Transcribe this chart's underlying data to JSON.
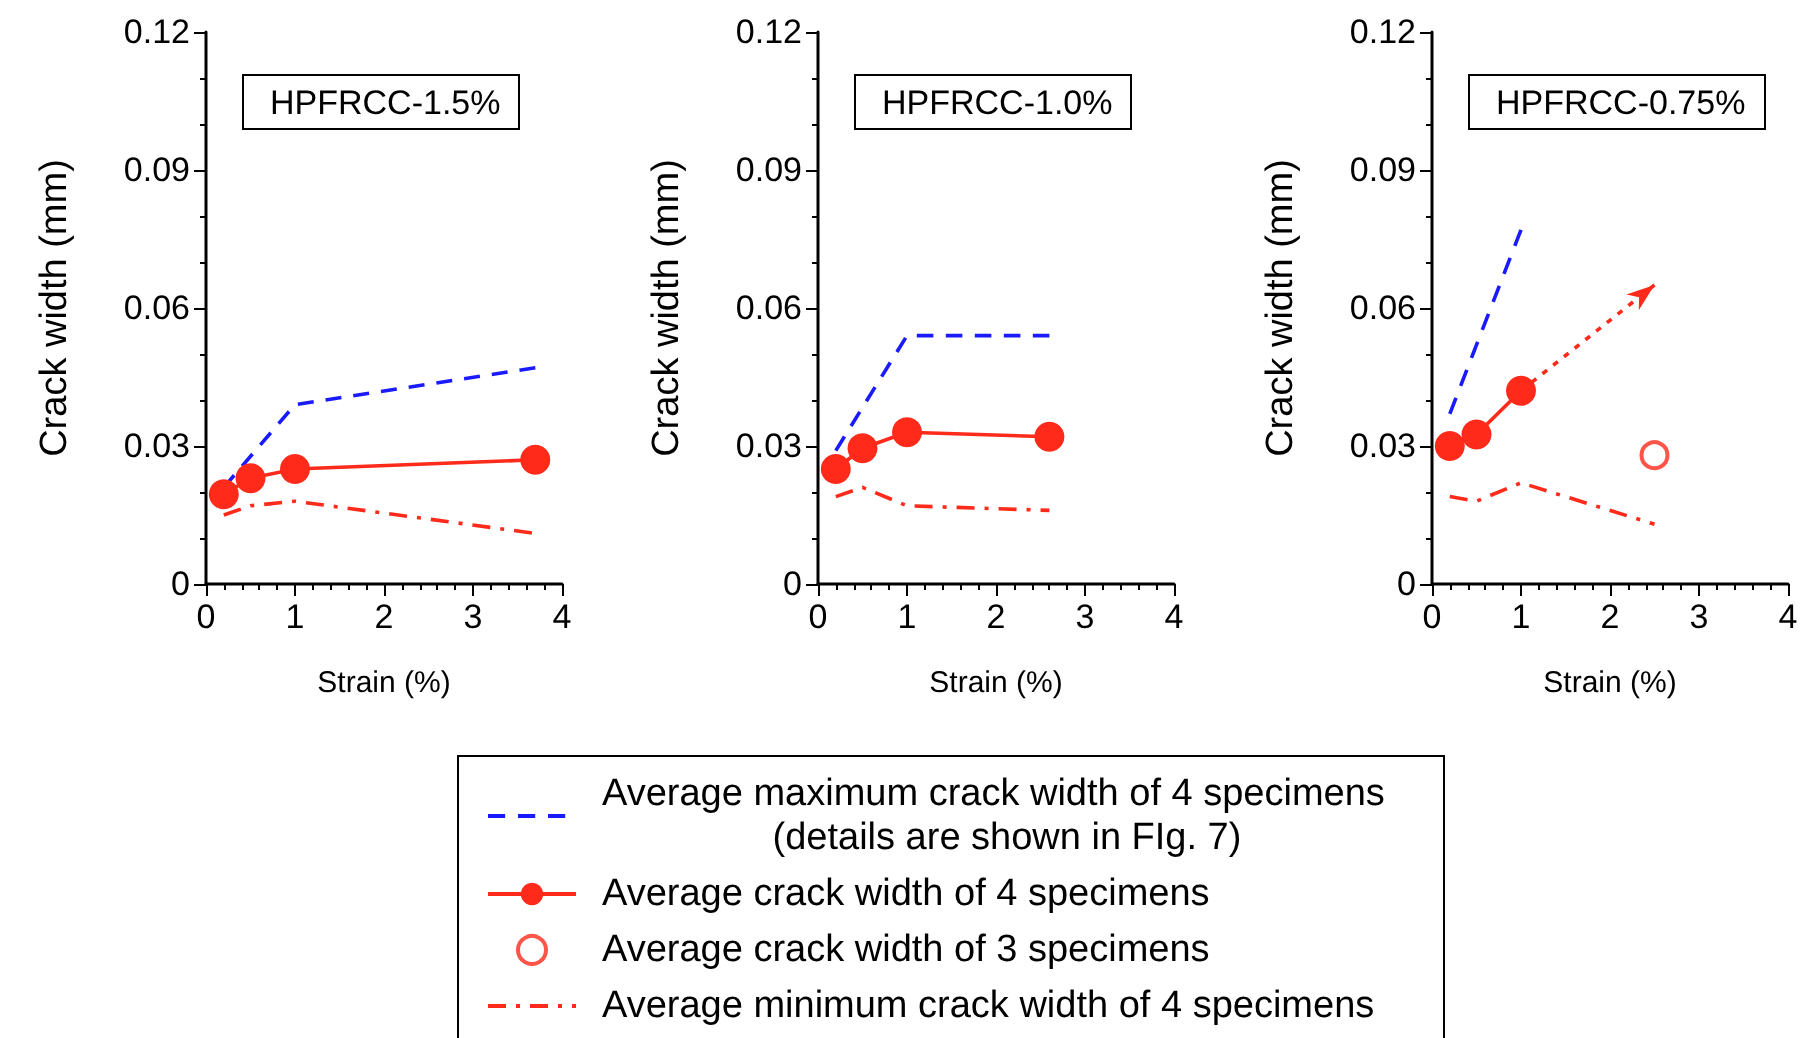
{
  "chart_data": [
    {
      "type": "line",
      "title": "HPFRCC-1.5%",
      "xlabel": "Strain (%)",
      "ylabel": "Crack width (mm)",
      "xlim": [
        0,
        4
      ],
      "xticks": [
        0,
        1,
        2,
        3,
        4
      ],
      "ylim": [
        0,
        0.12
      ],
      "yticks": [
        0,
        0.03,
        0.06,
        0.09,
        0.12
      ],
      "grid": false,
      "legend": false,
      "series": [
        {
          "color": "#1a1aff",
          "line_style": "dashed",
          "marker": "none",
          "x": [
            0.2,
            1,
            3.7
          ],
          "values": [
            0.021,
            0.039,
            0.047
          ]
        },
        {
          "color": "#ff2a1a",
          "line_style": "solid",
          "marker": "circle",
          "x": [
            0.2,
            0.5,
            1,
            3.7
          ],
          "values": [
            0.0195,
            0.023,
            0.025,
            0.027
          ]
        },
        {
          "color": "#ff2a1a",
          "line_style": "dashdot",
          "marker": "none",
          "x": [
            0.2,
            0.5,
            1,
            3.7
          ],
          "values": [
            0.015,
            0.017,
            0.018,
            0.011
          ]
        }
      ]
    },
    {
      "type": "line",
      "title": "HPFRCC-1.0%",
      "xlabel": "Strain (%)",
      "ylabel": "Crack width (mm)",
      "xlim": [
        0,
        4
      ],
      "xticks": [
        0,
        1,
        2,
        3,
        4
      ],
      "ylim": [
        0,
        0.12
      ],
      "yticks": [
        0,
        0.03,
        0.06,
        0.09,
        0.12
      ],
      "grid": false,
      "legend": false,
      "series": [
        {
          "color": "#1a1aff",
          "line_style": "dashed",
          "marker": "none",
          "x": [
            0.2,
            1,
            2.6
          ],
          "values": [
            0.029,
            0.054,
            0.054
          ]
        },
        {
          "color": "#ff2a1a",
          "line_style": "solid",
          "marker": "circle",
          "x": [
            0.2,
            0.5,
            1,
            2.6
          ],
          "values": [
            0.025,
            0.0295,
            0.033,
            0.032
          ]
        },
        {
          "color": "#ff2a1a",
          "line_style": "dashdot",
          "marker": "none",
          "x": [
            0.2,
            0.5,
            1,
            2.6
          ],
          "values": [
            0.019,
            0.021,
            0.017,
            0.016
          ]
        }
      ]
    },
    {
      "type": "line",
      "title": "HPFRCC-0.75%",
      "xlabel": "Strain (%)",
      "ylabel": "Crack width (mm)",
      "xlim": [
        0,
        4
      ],
      "xticks": [
        0,
        1,
        2,
        3,
        4
      ],
      "ylim": [
        0,
        0.12
      ],
      "yticks": [
        0,
        0.03,
        0.06,
        0.09,
        0.12
      ],
      "grid": false,
      "legend": "bottom",
      "series": [
        {
          "name": "Average maximum crack width of 4 specimens\n(details are shown in FIg. 7)",
          "color": "#1a1aff",
          "line_style": "dashed",
          "marker": "none",
          "x": [
            0.2,
            1
          ],
          "values": [
            0.037,
            0.077
          ]
        },
        {
          "name": "Average crack width of 4 specimens",
          "color": "#ff2a1a",
          "line_style": "solid",
          "marker": "circle",
          "x": [
            0.2,
            0.5,
            1
          ],
          "values": [
            0.03,
            0.0325,
            0.042
          ]
        },
        {
          "name": "Average crack width of 3 specimens",
          "type": "scatter",
          "color": "#ff2a1a",
          "marker": "circle_open",
          "x": [
            2.5
          ],
          "values": [
            0.028
          ]
        },
        {
          "name": "Average minimum crack width of 4 specimens",
          "color": "#ff2a1a",
          "line_style": "dashdot",
          "marker": "none",
          "x": [
            0.2,
            0.5,
            1,
            2.5
          ],
          "values": [
            0.019,
            0.018,
            0.022,
            0.013
          ]
        },
        {
          "color": "#ff2a1a",
          "line_style": "dotted",
          "marker": "none",
          "x": [
            1,
            2.5
          ],
          "values": [
            0.042,
            0.065
          ]
        }
      ]
    }
  ]
}
